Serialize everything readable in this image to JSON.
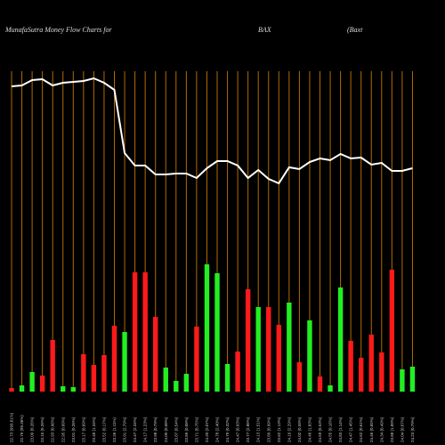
{
  "chart_data": {
    "type": "bar",
    "title": "MunafaSutra  Money Flow  Charts for",
    "ticker": "BAX",
    "company": "(Baxt",
    "categories": [
      "22.73 (999.61%)",
      "22.79 (99.36%)",
      "23.09 (0.26%)",
      "23.15 (0.26%)",
      "22.93 (0.96%)",
      "22.95 (0.09%)",
      "23.01 (0.26%)",
      "23.17 (0.69%)",
      "23.48 (1.34%)",
      "23.52 (0.17%)",
      "23.26 (1.11%)",
      "23.91 (2.79%)",
      "24.47 (2.34%)",
      "24.17 (1.23%)",
      "23.98 (0.79%)",
      "24.00 (0.08%)",
      "23.87 (0.54%)",
      "23.89 (0.08%)",
      "23.71 (0.75%)",
      "24.20 (2.07%)",
      "24.78 (2.40%)",
      "24.70 (0.32%)",
      "24.47 (0.93%)",
      "23.77 (2.86%)",
      "24.13 (1.51%)",
      "23.89 (0.99%)",
      "23.62 (1.13%)",
      "24.16 (2.29%)",
      "24.02 (0.58%)",
      "24.46 (1.83%)",
      "24.59 (0.53%)",
      "24.55 (0.16%)",
      "24.83 (1.14%)",
      "24.47 (1.45%)",
      "24.62 (0.61%)",
      "24.46 (0.65%)",
      "24.34 (0.49%)",
      "23.88 (1.89%)",
      "24.04 (0.67%)",
      "24.23 (0.79%)"
    ],
    "values": [
      4,
      7,
      22,
      18,
      58,
      6,
      5,
      42,
      30,
      41,
      74,
      67,
      134,
      134,
      84,
      27,
      12,
      20,
      73,
      143,
      133,
      31,
      45,
      115,
      95,
      95,
      75,
      100,
      33,
      80,
      17,
      7,
      117,
      57,
      38,
      64,
      44,
      137,
      25,
      28
    ],
    "colors": [
      "#ff1a1a",
      "#22ee22",
      "#22ee22",
      "#ff1a1a",
      "#ff1a1a",
      "#22ee22",
      "#22ee22",
      "#ff1a1a",
      "#ff1a1a",
      "#ff1a1a",
      "#ff1a1a",
      "#22ee22",
      "#ff1a1a",
      "#ff1a1a",
      "#ff1a1a",
      "#22ee22",
      "#22ee22",
      "#22ee22",
      "#ff1a1a",
      "#22ee22",
      "#22ee22",
      "#22ee22",
      "#ff1a1a",
      "#ff1a1a",
      "#22ee22",
      "#ff1a1a",
      "#ff1a1a",
      "#22ee22",
      "#ff1a1a",
      "#22ee22",
      "#ff1a1a",
      "#22ee22",
      "#22ee22",
      "#ff1a1a",
      "#ff1a1a",
      "#ff1a1a",
      "#ff1a1a",
      "#ff1a1a",
      "#22ee22",
      "#22ee22"
    ],
    "line_values": [
      343,
      344,
      350,
      351,
      344,
      347,
      348,
      349,
      352,
      347,
      339,
      268,
      254,
      254,
      244,
      244,
      245,
      245,
      240,
      251,
      259,
      259,
      254,
      240,
      249,
      239,
      234,
      252,
      250,
      258,
      262,
      260,
      267,
      262,
      263,
      255,
      257,
      248,
      248,
      251
    ],
    "line_color": "#ffffff",
    "ylim": [
      0,
      360
    ]
  }
}
